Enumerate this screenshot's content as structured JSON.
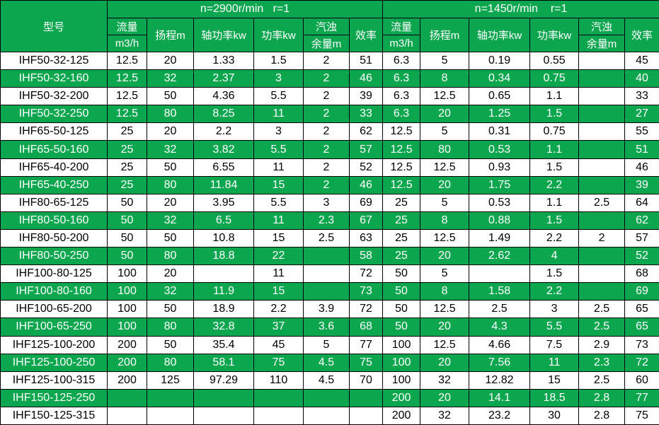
{
  "colors": {
    "green": "#0ca64f",
    "grid": "#000000",
    "white_row": "#ffffff",
    "header_text": "#ffffff"
  },
  "header": {
    "model": "型号",
    "group1_title": "n=2900r/min   r=1",
    "group2_title": "n=1450r/min    r=1",
    "flow_line1": "流量",
    "flow_line2": "m3/h",
    "head": "扬程m",
    "shaft_power": "轴功率kw",
    "power": "功率kw",
    "npsh_line1": "汽浊",
    "npsh_line2": "余量m",
    "efficiency": "效率"
  },
  "rows": [
    {
      "model": "IHF50-32-125",
      "values": [
        "12.5",
        "20",
        "1.33",
        "1.5",
        "2",
        "51",
        "6.3",
        "5",
        "0.19",
        "0.55",
        "",
        "45"
      ]
    },
    {
      "model": "IHF50-32-160",
      "values": [
        "12.5",
        "32",
        "2.37",
        "3",
        "2",
        "46",
        "6.3",
        "8",
        "0.34",
        "0.75",
        "",
        "40"
      ]
    },
    {
      "model": "IHF50-32-200",
      "values": [
        "12.5",
        "50",
        "4.36",
        "5.5",
        "2",
        "39",
        "6.3",
        "12.5",
        "0.65",
        "1.1",
        "",
        "33"
      ]
    },
    {
      "model": "IHF50-32-250",
      "values": [
        "12.5",
        "80",
        "8.25",
        "11",
        "2",
        "33",
        "6.3",
        "20",
        "1.25",
        "1.5",
        "",
        "27"
      ]
    },
    {
      "model": "IHF65-50-125",
      "values": [
        "25",
        "20",
        "2.2",
        "3",
        "2",
        "62",
        "12.5",
        "5",
        "0.31",
        "0.75",
        "",
        "55"
      ]
    },
    {
      "model": "IHF65-50-160",
      "values": [
        "25",
        "32",
        "3.82",
        "5.5",
        "2",
        "57",
        "12.5",
        "80",
        "0.53",
        "1.1",
        "",
        "51"
      ]
    },
    {
      "model": "IHF65-40-200",
      "values": [
        "25",
        "50",
        "6.55",
        "11",
        "2",
        "52",
        "12.5",
        "12.5",
        "0.93",
        "1.5",
        "",
        "46"
      ]
    },
    {
      "model": "IHF65-40-250",
      "values": [
        "25",
        "80",
        "11.84",
        "15",
        "2",
        "46",
        "12.5",
        "20",
        "1.75",
        "2.2",
        "",
        "39"
      ]
    },
    {
      "model": "IHF80-65-125",
      "values": [
        "50",
        "20",
        "3.95",
        "5.5",
        "3",
        "69",
        "25",
        "5",
        "0.53",
        "1.1",
        "2.5",
        "64"
      ]
    },
    {
      "model": "IHF80-50-160",
      "values": [
        "50",
        "32",
        "6.5",
        "11",
        "2.3",
        "67",
        "25",
        "8",
        "0.88",
        "1.5",
        "",
        "62"
      ]
    },
    {
      "model": "IHF80-50-200",
      "values": [
        "50",
        "50",
        "10.8",
        "15",
        "2.5",
        "63",
        "25",
        "12.5",
        "1.49",
        "2.2",
        "2",
        "57"
      ]
    },
    {
      "model": "IHF80-50-250",
      "values": [
        "50",
        "80",
        "18.8",
        "22",
        "",
        "58",
        "25",
        "20",
        "2.62",
        "4",
        "",
        "52"
      ]
    },
    {
      "model": "IHF100-80-125",
      "values": [
        "100",
        "20",
        "",
        "11",
        "",
        "72",
        "50",
        "5",
        "",
        "1.5",
        "",
        "68"
      ]
    },
    {
      "model": "IHF100-80-160",
      "values": [
        "100",
        "32",
        "11.9",
        "15",
        "",
        "73",
        "50",
        "8",
        "1.58",
        "2.2",
        "",
        "69"
      ]
    },
    {
      "model": "IHF100-65-200",
      "values": [
        "100",
        "50",
        "18.9",
        "2.2",
        "3.9",
        "72",
        "50",
        "12.5",
        "2.5",
        "3",
        "2.5",
        "65"
      ]
    },
    {
      "model": "IHF100-65-250",
      "values": [
        "100",
        "80",
        "32.8",
        "37",
        "3.6",
        "68",
        "50",
        "20",
        "4.3",
        "5.5",
        "2.5",
        "65"
      ]
    },
    {
      "model": "IHF125-100-200",
      "values": [
        "200",
        "50",
        "35.4",
        "45",
        "5",
        "77",
        "100",
        "12.5",
        "4.66",
        "7.5",
        "2.9",
        "73"
      ]
    },
    {
      "model": "IHF125-100-250",
      "values": [
        "200",
        "80",
        "58.1",
        "75",
        "4.5",
        "75",
        "100",
        "20",
        "7.56",
        "11",
        "2.3",
        "72"
      ]
    },
    {
      "model": "IHF125-100-315",
      "values": [
        "200",
        "125",
        "97.29",
        "110",
        "4.5",
        "70",
        "100",
        "32",
        "12.82",
        "15",
        "2.5",
        "60"
      ]
    },
    {
      "model": "IHF150-125-250",
      "values": [
        "",
        "",
        "",
        "",
        "",
        "",
        "200",
        "20",
        "14.1",
        "18.5",
        "2.8",
        "77"
      ]
    },
    {
      "model": "IHF150-125-315",
      "values": [
        "",
        "",
        "",
        "",
        "",
        "",
        "200",
        "32",
        "23.2",
        "30",
        "2.8",
        "75"
      ]
    }
  ]
}
